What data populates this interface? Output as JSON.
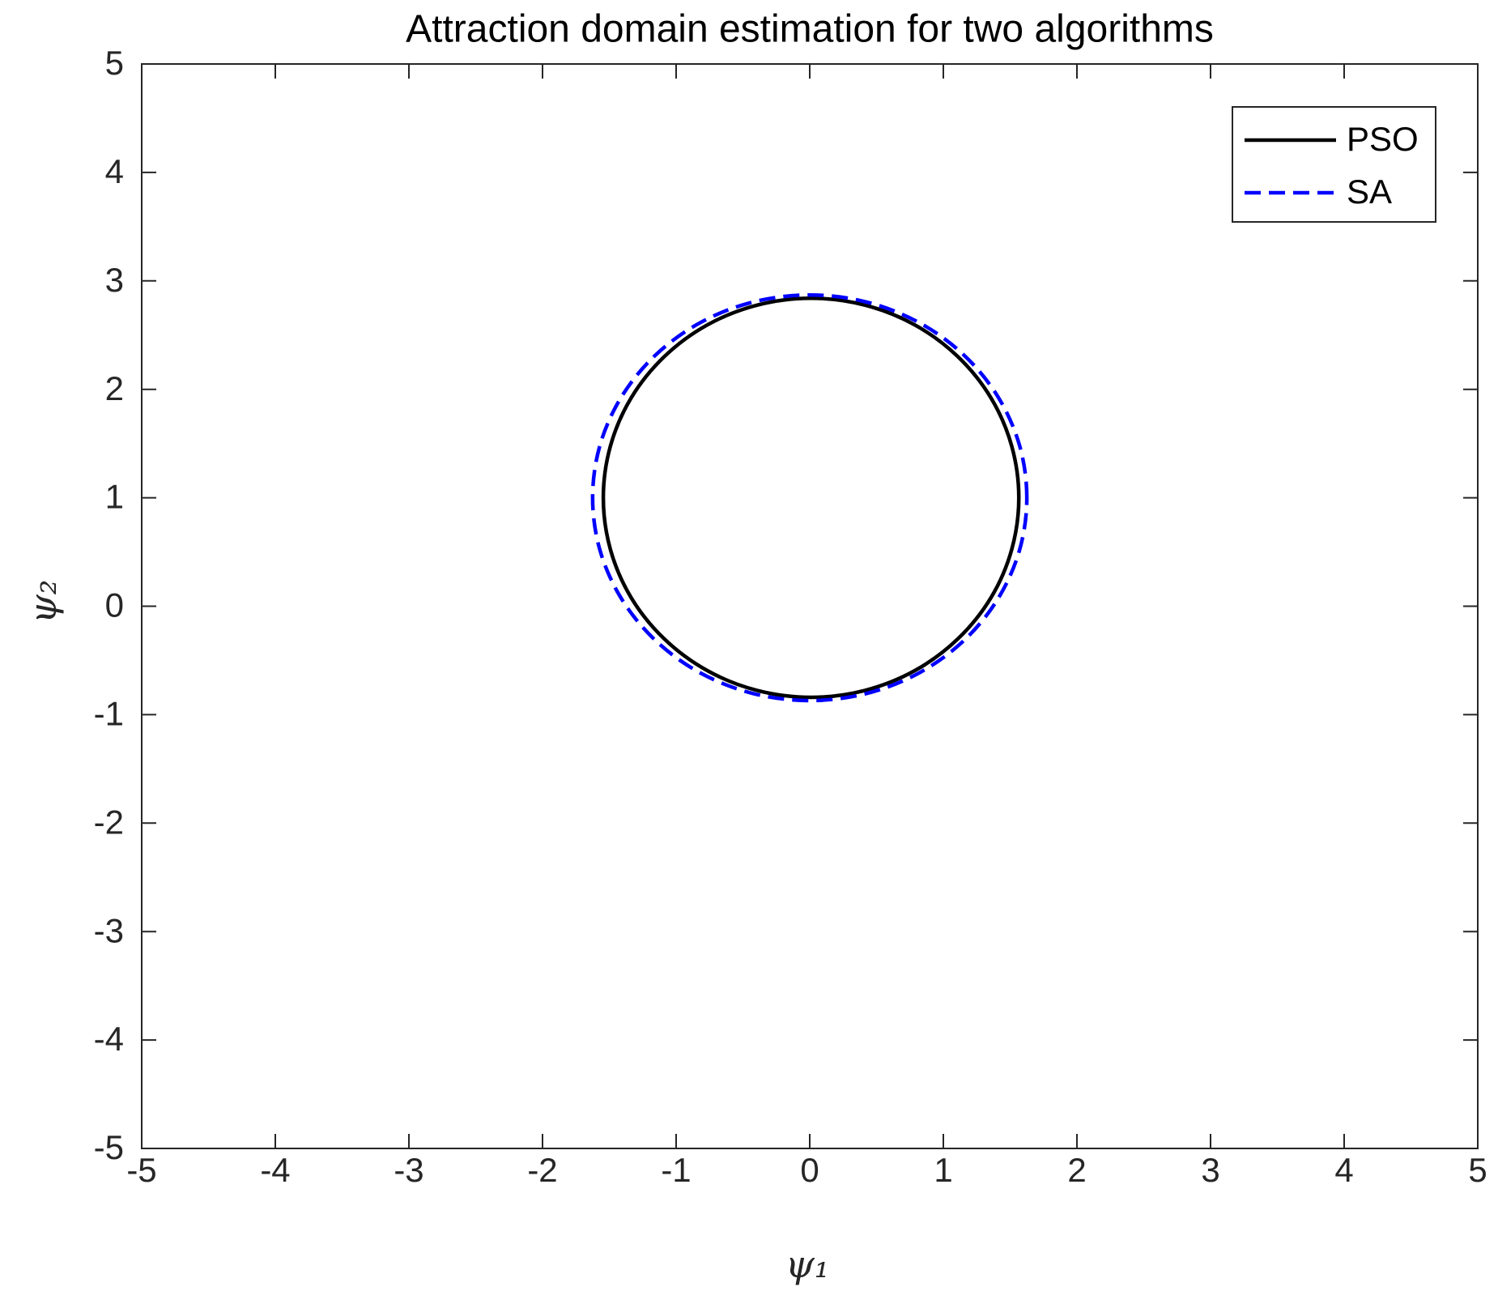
{
  "chart_data": {
    "type": "line",
    "title": "Attraction domain estimation for two algorithms",
    "xlabel": "ψ₁",
    "ylabel": "ψ₂",
    "xlim": [
      -5,
      5
    ],
    "ylim": [
      -5,
      5
    ],
    "xticks": [
      -5,
      -4,
      -3,
      -2,
      -1,
      0,
      1,
      2,
      3,
      4,
      5
    ],
    "yticks": [
      -5,
      -4,
      -3,
      -2,
      -1,
      0,
      1,
      2,
      3,
      4,
      5
    ],
    "grid": false,
    "legend": "top-right",
    "series": [
      {
        "name": "PSO",
        "color": "#000000",
        "dash": "solid",
        "x": [
          1.565,
          1.512,
          1.357,
          1.109,
          0.788,
          0.412,
          0.01,
          -0.392,
          -0.768,
          -1.089,
          -1.337,
          -1.492,
          -1.545,
          -1.492,
          -1.337,
          -1.089,
          -0.768,
          -0.392,
          0.01,
          0.412,
          0.788,
          1.109,
          1.357,
          1.512,
          1.565
        ],
        "values": [
          1.0,
          1.476,
          1.92,
          2.301,
          2.593,
          2.777,
          2.84,
          2.777,
          2.593,
          2.301,
          1.92,
          1.476,
          1.0,
          0.524,
          0.08,
          -0.301,
          -0.593,
          -0.777,
          -0.84,
          -0.777,
          -0.593,
          -0.301,
          0.08,
          0.524,
          1.0
        ]
      },
      {
        "name": "SA",
        "color": "#0000ff",
        "dash": "dashed",
        "x": [
          1.625,
          1.57,
          1.407,
          1.149,
          0.813,
          0.421,
          0,
          -0.421,
          -0.813,
          -1.149,
          -1.407,
          -1.57,
          -1.625,
          -1.57,
          -1.407,
          -1.149,
          -0.813,
          -0.421,
          0,
          0.421,
          0.813,
          1.149,
          1.407,
          1.57,
          1.625
        ],
        "values": [
          1.0,
          1.484,
          1.935,
          2.322,
          2.619,
          2.806,
          2.87,
          2.806,
          2.619,
          2.322,
          1.935,
          1.484,
          1.0,
          0.516,
          0.065,
          -0.322,
          -0.619,
          -0.806,
          -0.87,
          -0.806,
          -0.619,
          -0.322,
          0.065,
          0.516,
          1.0
        ]
      }
    ]
  }
}
